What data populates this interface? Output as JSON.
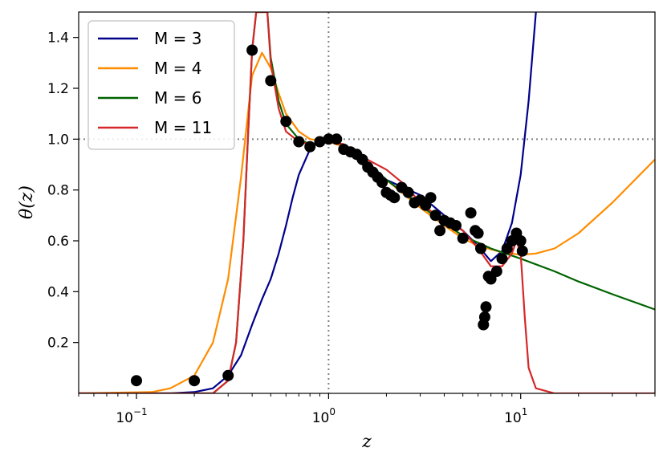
{
  "chart_data": {
    "type": "line",
    "xlabel": "z",
    "ylabel": "θ(z)",
    "xscale": "log",
    "xlim": [
      0.05,
      50
    ],
    "ylim": [
      0,
      1.5
    ],
    "x_tick_labels": [
      {
        "value": 0.1,
        "base": "10",
        "exp": "−1"
      },
      {
        "value": 1,
        "base": "10",
        "exp": "0"
      },
      {
        "value": 10,
        "base": "10",
        "exp": "1"
      }
    ],
    "y_ticks": [
      0.2,
      0.4,
      0.6,
      0.8,
      1.0,
      1.2,
      1.4
    ],
    "y_tick_labels": [
      "0.2",
      "0.4",
      "0.6",
      "0.8",
      "1.0",
      "1.2",
      "1.4"
    ],
    "reference_lines": {
      "x": 1,
      "y": 1,
      "color": "#808080",
      "style": "dotted"
    },
    "legend": {
      "placement": "top-left"
    },
    "series": [
      {
        "name": "M = 3",
        "color": "#00008b",
        "points": [
          [
            0.05,
            0.0
          ],
          [
            0.15,
            0.0
          ],
          [
            0.2,
            0.005
          ],
          [
            0.25,
            0.02
          ],
          [
            0.3,
            0.07
          ],
          [
            0.35,
            0.15
          ],
          [
            0.4,
            0.27
          ],
          [
            0.45,
            0.37
          ],
          [
            0.5,
            0.45
          ],
          [
            0.55,
            0.55
          ],
          [
            0.6,
            0.66
          ],
          [
            0.65,
            0.77
          ],
          [
            0.7,
            0.86
          ],
          [
            0.8,
            0.96
          ],
          [
            0.9,
            1.0
          ],
          [
            1.0,
            1.0
          ],
          [
            1.2,
            0.97
          ],
          [
            1.5,
            0.9
          ],
          [
            2.0,
            0.84
          ],
          [
            3.0,
            0.78
          ],
          [
            4.0,
            0.7
          ],
          [
            5.0,
            0.64
          ],
          [
            6.0,
            0.58
          ],
          [
            7.0,
            0.52
          ],
          [
            8.0,
            0.56
          ],
          [
            9.0,
            0.67
          ],
          [
            10.0,
            0.86
          ],
          [
            11.0,
            1.15
          ],
          [
            12.0,
            1.5
          ]
        ]
      },
      {
        "name": "M = 4",
        "color": "#ff8c00",
        "points": [
          [
            0.05,
            0.0
          ],
          [
            0.12,
            0.005
          ],
          [
            0.15,
            0.02
          ],
          [
            0.2,
            0.07
          ],
          [
            0.25,
            0.2
          ],
          [
            0.3,
            0.45
          ],
          [
            0.35,
            0.85
          ],
          [
            0.4,
            1.25
          ],
          [
            0.45,
            1.34
          ],
          [
            0.5,
            1.28
          ],
          [
            0.55,
            1.18
          ],
          [
            0.6,
            1.1
          ],
          [
            0.7,
            1.03
          ],
          [
            0.8,
            1.0
          ],
          [
            1.0,
            0.99
          ],
          [
            1.2,
            0.97
          ],
          [
            1.5,
            0.92
          ],
          [
            2.0,
            0.84
          ],
          [
            3.0,
            0.73
          ],
          [
            4.0,
            0.66
          ],
          [
            5.0,
            0.61
          ],
          [
            6.0,
            0.58
          ],
          [
            8.0,
            0.555
          ],
          [
            10.0,
            0.545
          ],
          [
            12.0,
            0.55
          ],
          [
            15.0,
            0.57
          ],
          [
            20.0,
            0.63
          ],
          [
            30.0,
            0.75
          ],
          [
            50.0,
            0.92
          ]
        ]
      },
      {
        "name": "M = 6",
        "color": "#006400",
        "points": [
          [
            0.05,
            0.0
          ],
          [
            0.25,
            0.0
          ],
          [
            0.3,
            0.05
          ],
          [
            0.33,
            0.2
          ],
          [
            0.36,
            0.6
          ],
          [
            0.38,
            1.0
          ],
          [
            0.4,
            1.35
          ],
          [
            0.42,
            1.5
          ],
          [
            0.48,
            1.5
          ],
          [
            0.5,
            1.32
          ],
          [
            0.55,
            1.15
          ],
          [
            0.6,
            1.06
          ],
          [
            0.7,
            1.0
          ],
          [
            0.8,
            0.98
          ],
          [
            1.0,
            0.99
          ],
          [
            1.2,
            0.98
          ],
          [
            1.5,
            0.93
          ],
          [
            2.0,
            0.84
          ],
          [
            3.0,
            0.74
          ],
          [
            4.0,
            0.67
          ],
          [
            5.0,
            0.62
          ],
          [
            7.0,
            0.57
          ],
          [
            10.0,
            0.53
          ],
          [
            15.0,
            0.48
          ],
          [
            20.0,
            0.44
          ],
          [
            30.0,
            0.39
          ],
          [
            50.0,
            0.33
          ]
        ]
      },
      {
        "name": "M = 11",
        "color": "#d62728",
        "points": [
          [
            0.05,
            0.0
          ],
          [
            0.25,
            0.0
          ],
          [
            0.3,
            0.05
          ],
          [
            0.33,
            0.2
          ],
          [
            0.36,
            0.6
          ],
          [
            0.38,
            1.0
          ],
          [
            0.4,
            1.35
          ],
          [
            0.42,
            1.5
          ],
          [
            0.48,
            1.5
          ],
          [
            0.5,
            1.3
          ],
          [
            0.55,
            1.12
          ],
          [
            0.6,
            1.03
          ],
          [
            0.7,
            0.99
          ],
          [
            0.8,
            0.98
          ],
          [
            1.0,
            0.99
          ],
          [
            1.2,
            0.98
          ],
          [
            1.5,
            0.93
          ],
          [
            2.0,
            0.88
          ],
          [
            2.5,
            0.82
          ],
          [
            3.0,
            0.75
          ],
          [
            3.5,
            0.71
          ],
          [
            4.0,
            0.69
          ],
          [
            5.0,
            0.64
          ],
          [
            6.0,
            0.57
          ],
          [
            7.0,
            0.5
          ],
          [
            8.0,
            0.5
          ],
          [
            9.0,
            0.55
          ],
          [
            9.5,
            0.6
          ],
          [
            10.0,
            0.55
          ],
          [
            10.5,
            0.3
          ],
          [
            11.0,
            0.1
          ],
          [
            12.0,
            0.02
          ],
          [
            15.0,
            0.0
          ],
          [
            50.0,
            0.0
          ]
        ]
      }
    ],
    "scatter": {
      "color": "#000000",
      "points": [
        [
          0.1,
          0.05
        ],
        [
          0.2,
          0.05
        ],
        [
          0.3,
          0.07
        ],
        [
          0.4,
          1.35
        ],
        [
          0.5,
          1.23
        ],
        [
          0.6,
          1.07
        ],
        [
          0.7,
          0.99
        ],
        [
          0.8,
          0.97
        ],
        [
          0.9,
          0.99
        ],
        [
          1.0,
          1.0
        ],
        [
          1.1,
          1.0
        ],
        [
          1.2,
          0.96
        ],
        [
          1.3,
          0.95
        ],
        [
          1.4,
          0.94
        ],
        [
          1.5,
          0.92
        ],
        [
          1.6,
          0.89
        ],
        [
          1.7,
          0.87
        ],
        [
          1.8,
          0.85
        ],
        [
          1.9,
          0.83
        ],
        [
          2.0,
          0.79
        ],
        [
          2.1,
          0.78
        ],
        [
          2.2,
          0.77
        ],
        [
          2.4,
          0.81
        ],
        [
          2.6,
          0.79
        ],
        [
          2.8,
          0.75
        ],
        [
          3.0,
          0.76
        ],
        [
          3.2,
          0.74
        ],
        [
          3.4,
          0.77
        ],
        [
          3.6,
          0.7
        ],
        [
          3.8,
          0.64
        ],
        [
          4.0,
          0.68
        ],
        [
          4.3,
          0.67
        ],
        [
          4.6,
          0.66
        ],
        [
          5.0,
          0.61
        ],
        [
          5.5,
          0.71
        ],
        [
          5.8,
          0.64
        ],
        [
          6.0,
          0.63
        ],
        [
          6.2,
          0.57
        ],
        [
          6.4,
          0.27
        ],
        [
          6.5,
          0.3
        ],
        [
          6.6,
          0.34
        ],
        [
          6.8,
          0.46
        ],
        [
          7.0,
          0.45
        ],
        [
          7.5,
          0.48
        ],
        [
          8.0,
          0.53
        ],
        [
          8.5,
          0.57
        ],
        [
          9.0,
          0.6
        ],
        [
          9.5,
          0.63
        ],
        [
          10.0,
          0.6
        ],
        [
          10.2,
          0.56
        ]
      ]
    }
  }
}
